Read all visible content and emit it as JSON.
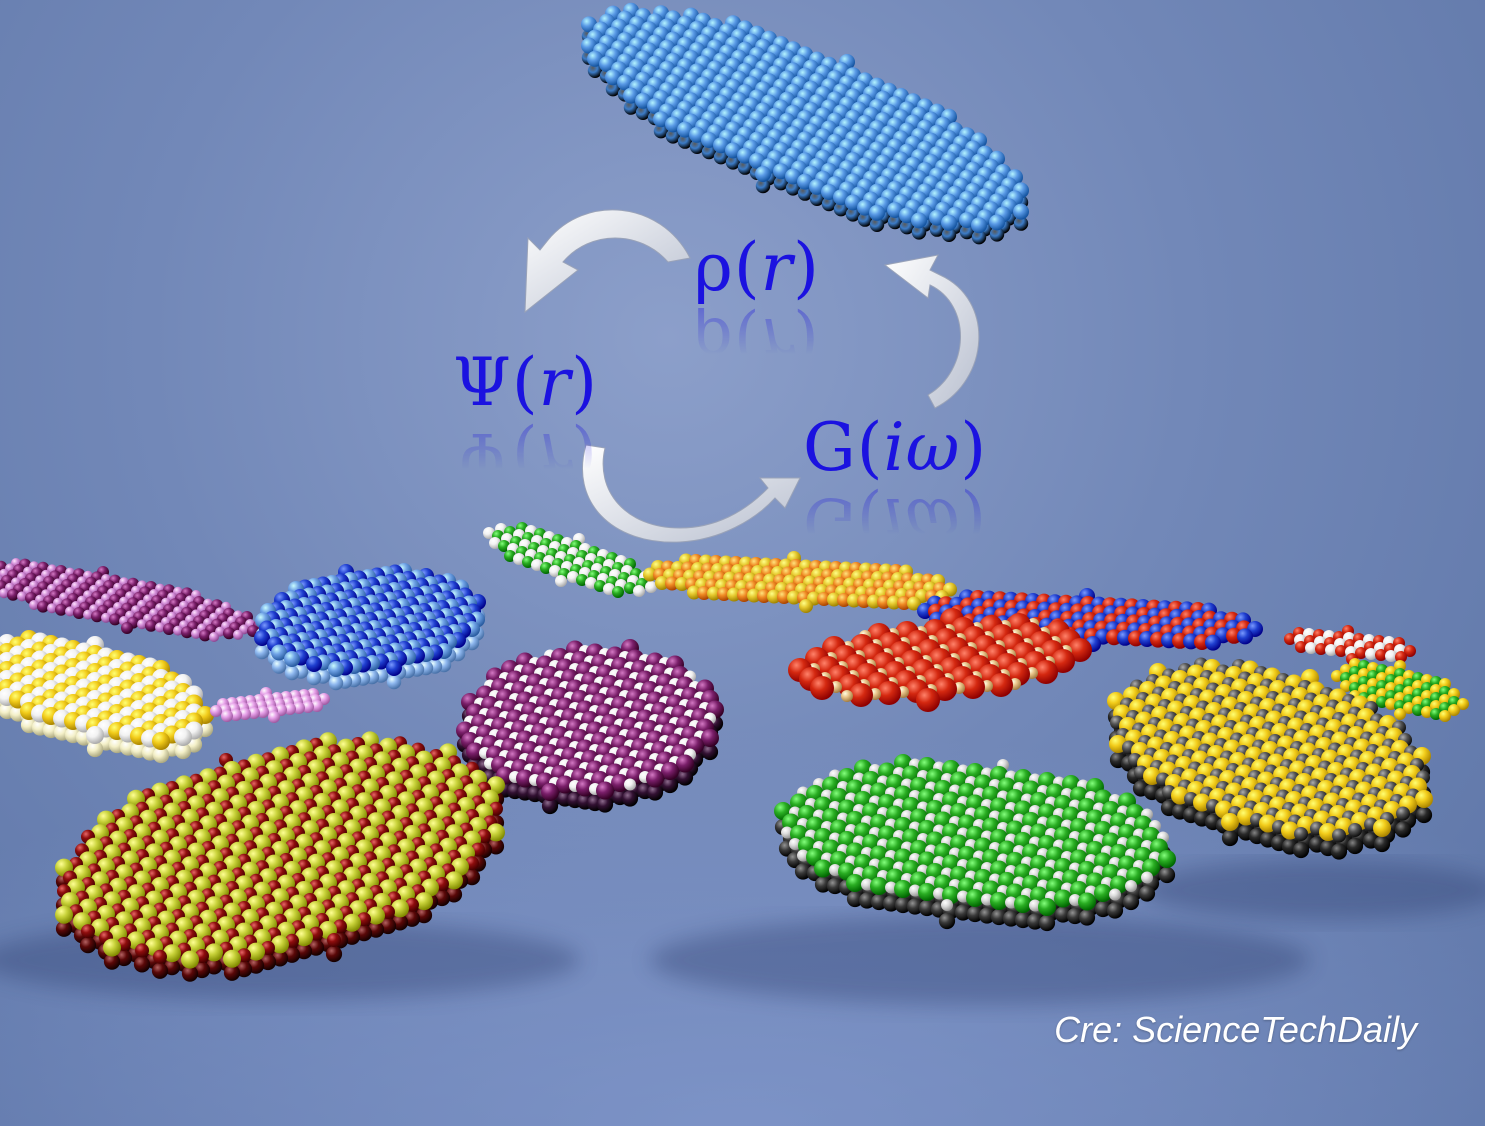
{
  "image": {
    "background_color": "#7288b8",
    "formula_color": "#1b12e0",
    "credit_color": "#ffffff"
  },
  "formulas": {
    "rho": {
      "symbol": "ρ",
      "open": "(",
      "arg": "r",
      "close": ")"
    },
    "psi": {
      "symbol": "Ψ",
      "open": "(",
      "arg": "r",
      "close": ")"
    },
    "green": {
      "symbol": "G",
      "open": "(",
      "arg": "iω",
      "close": ")"
    }
  },
  "credit": "Cre: ScienceTechDaily",
  "layer_colors": {
    "top_blue": "#5a9ae6",
    "purple": "#7a1f6a",
    "yellow": "#f2cc1a",
    "red": "#d42810",
    "green": "#2aae23",
    "olive": "#c8d23a",
    "dark_red": "#8e0d0d",
    "orange": "#f08a24",
    "blue": "#2040d0",
    "grey": "#555555",
    "white": "#f2f2f2"
  }
}
